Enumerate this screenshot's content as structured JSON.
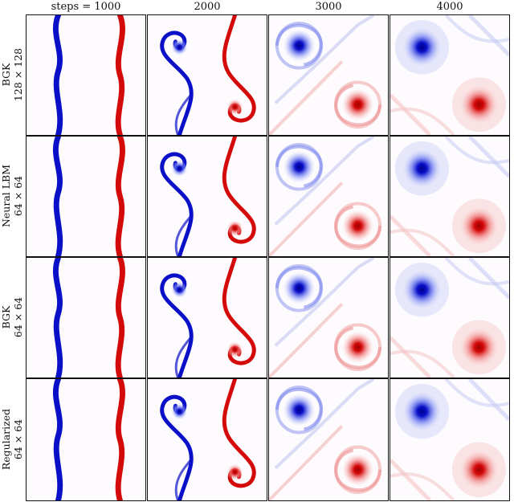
{
  "columns": [
    {
      "label": "steps = 1000"
    },
    {
      "label": "2000"
    },
    {
      "label": "3000"
    },
    {
      "label": "4000"
    }
  ],
  "rows": [
    {
      "method": "BGK",
      "resolution": "128 × 128"
    },
    {
      "method": "Neural LBM",
      "resolution": "64 × 64"
    },
    {
      "method": "BGK",
      "resolution": "64 × 64"
    },
    {
      "method": "Regularized",
      "resolution": "64 × 64"
    }
  ],
  "colors": {
    "negative_vorticity": "#0a10c8",
    "positive_vorticity": "#d40a0a",
    "background": "#fdfbfd",
    "frame": "#111111"
  }
}
